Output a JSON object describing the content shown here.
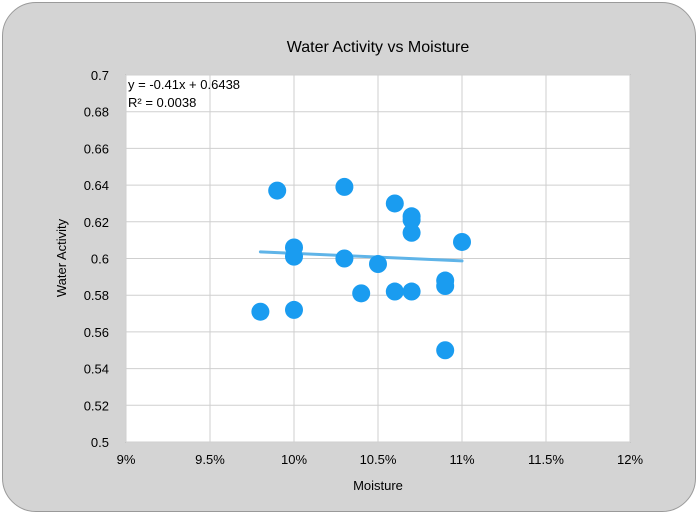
{
  "chart_data": {
    "type": "scatter",
    "title": "Water Activity vs Moisture",
    "xlabel": "Moisture",
    "ylabel": "Water Activity",
    "xlim": [
      0.09,
      0.12
    ],
    "ylim": [
      0.5,
      0.7
    ],
    "x_ticks": [
      0.09,
      0.095,
      0.1,
      0.105,
      0.11,
      0.115,
      0.12
    ],
    "x_tick_labels": [
      "9%",
      "9.5%",
      "10%",
      "10.5%",
      "11%",
      "11.5%",
      "12%"
    ],
    "y_ticks": [
      0.5,
      0.52,
      0.54,
      0.56,
      0.58,
      0.6,
      0.62,
      0.64,
      0.66,
      0.68,
      0.7
    ],
    "y_tick_labels": [
      "0.5",
      "0.52",
      "0.54",
      "0.56",
      "0.58",
      "0.6",
      "0.62",
      "0.64",
      "0.66",
      "0.68",
      "0.7"
    ],
    "grid": true,
    "series": [
      {
        "color": "#1a9cf0",
        "points": [
          {
            "x": 0.098,
            "y": 0.571
          },
          {
            "x": 0.099,
            "y": 0.637
          },
          {
            "x": 0.1,
            "y": 0.606
          },
          {
            "x": 0.1,
            "y": 0.601
          },
          {
            "x": 0.1,
            "y": 0.572
          },
          {
            "x": 0.103,
            "y": 0.639
          },
          {
            "x": 0.103,
            "y": 0.6
          },
          {
            "x": 0.104,
            "y": 0.581
          },
          {
            "x": 0.105,
            "y": 0.597
          },
          {
            "x": 0.106,
            "y": 0.63
          },
          {
            "x": 0.106,
            "y": 0.582
          },
          {
            "x": 0.107,
            "y": 0.623
          },
          {
            "x": 0.107,
            "y": 0.621
          },
          {
            "x": 0.107,
            "y": 0.614
          },
          {
            "x": 0.107,
            "y": 0.582
          },
          {
            "x": 0.109,
            "y": 0.588
          },
          {
            "x": 0.109,
            "y": 0.585
          },
          {
            "x": 0.109,
            "y": 0.55
          },
          {
            "x": 0.11,
            "y": 0.609
          }
        ]
      }
    ],
    "trendline": {
      "slope": -0.41,
      "intercept": 0.6438,
      "x_range": [
        0.098,
        0.11
      ],
      "color": "#5fb4e8",
      "equation": "y = -0.41x + 0.6438",
      "r_squared": "R² = 0.0038"
    }
  }
}
